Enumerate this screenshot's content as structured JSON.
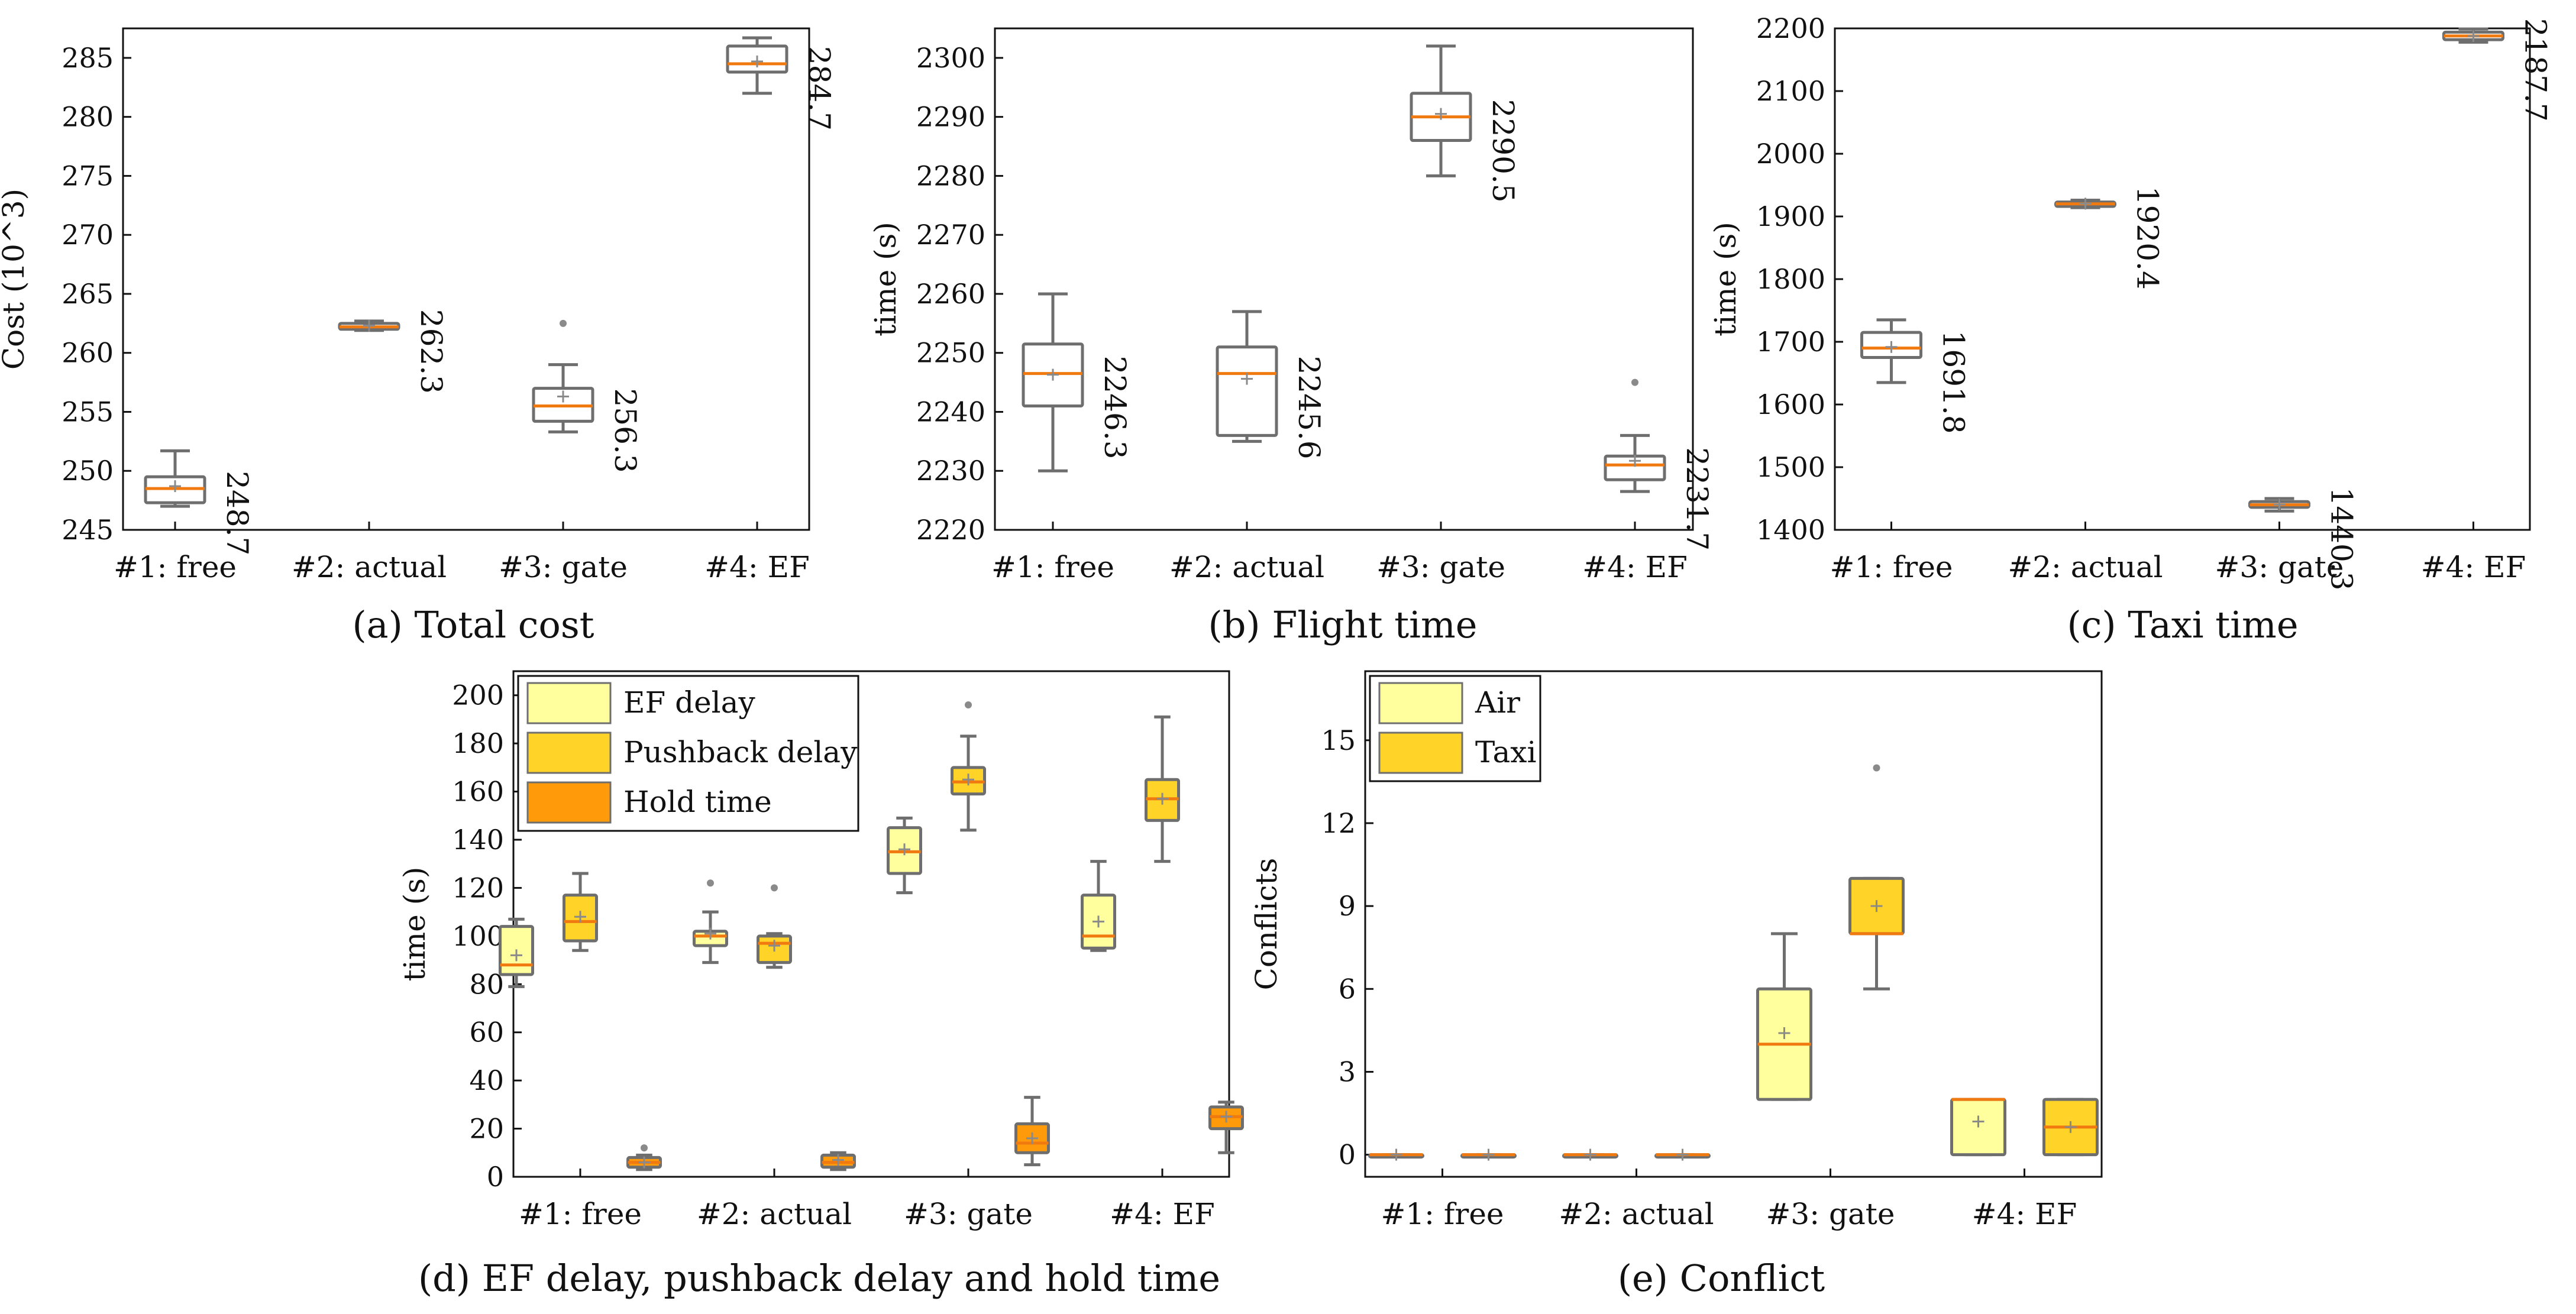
{
  "colors": {
    "box_stroke": "#6e6e6e",
    "median": "#f07a10",
    "mean": "#8a8a8a",
    "fill_white": "#ffffff",
    "fill_light": "#ffff9e",
    "fill_mid": "#ffd327",
    "fill_dark": "#ff9a0a"
  },
  "captions": {
    "a": "(a) Total cost",
    "b": "(b) Flight time",
    "c": "(c) Taxi time",
    "d": "(d) EF delay, pushback delay and hold time",
    "e": "(e) Conflict"
  },
  "chart_data": [
    {
      "id": "a",
      "type": "box",
      "title": "(a) Total cost",
      "ylabel": "Cost (10^3)",
      "ylim": [
        245,
        287.5
      ],
      "yticks": [
        245,
        250,
        255,
        260,
        265,
        270,
        275,
        280,
        285
      ],
      "categories": [
        "#1: free",
        "#2: actual",
        "#3: gate",
        "#4: EF"
      ],
      "series": [
        {
          "name": "Total cost",
          "fill": "fill_white",
          "boxes": [
            {
              "whislo": 247.0,
              "q1": 247.3,
              "med": 248.5,
              "q3": 249.5,
              "whishi": 251.7,
              "mean": 248.7,
              "fliers": []
            },
            {
              "whislo": 261.9,
              "q1": 262.0,
              "med": 262.2,
              "q3": 262.5,
              "whishi": 262.7,
              "mean": 262.3,
              "fliers": []
            },
            {
              "whislo": 253.3,
              "q1": 254.2,
              "med": 255.5,
              "q3": 257.0,
              "whishi": 259.0,
              "mean": 256.3,
              "fliers": [
                262.5
              ]
            },
            {
              "whislo": 282.0,
              "q1": 283.8,
              "med": 284.5,
              "q3": 286.0,
              "whishi": 286.7,
              "mean": 284.7,
              "fliers": []
            }
          ]
        }
      ],
      "data_labels": [
        "248.7",
        "262.3",
        "256.3",
        "284.7"
      ]
    },
    {
      "id": "b",
      "type": "box",
      "title": "(b) Flight time",
      "ylabel": "time (s)",
      "ylim": [
        2220,
        2305
      ],
      "yticks": [
        2220,
        2230,
        2240,
        2250,
        2260,
        2270,
        2280,
        2290,
        2300
      ],
      "categories": [
        "#1: free",
        "#2: actual",
        "#3: gate",
        "#4: EF"
      ],
      "series": [
        {
          "name": "Flight time",
          "fill": "fill_white",
          "boxes": [
            {
              "whislo": 2230.0,
              "q1": 2241.0,
              "med": 2246.5,
              "q3": 2251.5,
              "whishi": 2260.0,
              "mean": 2246.3,
              "fliers": []
            },
            {
              "whislo": 2235.0,
              "q1": 2236.0,
              "med": 2246.5,
              "q3": 2251.0,
              "whishi": 2257.0,
              "mean": 2245.6,
              "fliers": []
            },
            {
              "whislo": 2280.0,
              "q1": 2286.0,
              "med": 2290.0,
              "q3": 2294.0,
              "whishi": 2302.0,
              "mean": 2290.5,
              "fliers": []
            },
            {
              "whislo": 2226.5,
              "q1": 2228.5,
              "med": 2231.0,
              "q3": 2232.5,
              "whishi": 2236.0,
              "mean": 2231.7,
              "fliers": [
                2245.0
              ]
            }
          ]
        }
      ],
      "data_labels": [
        "2246.3",
        "2245.6",
        "2290.5",
        "2231.7"
      ]
    },
    {
      "id": "c",
      "type": "box",
      "title": "(c) Taxi time",
      "ylabel": "time (s)",
      "ylim": [
        1400,
        2200
      ],
      "yticks": [
        1400,
        1500,
        1600,
        1700,
        1800,
        1900,
        2000,
        2100,
        2200
      ],
      "categories": [
        "#1: free",
        "#2: actual",
        "#3: gate",
        "#4: EF"
      ],
      "series": [
        {
          "name": "Taxi time",
          "fill": "fill_white",
          "boxes": [
            {
              "whislo": 1635,
              "q1": 1675,
              "med": 1690,
              "q3": 1715,
              "whishi": 1735,
              "mean": 1691.8,
              "fliers": []
            },
            {
              "whislo": 1914,
              "q1": 1916,
              "med": 1920,
              "q3": 1923,
              "whishi": 1926,
              "mean": 1920.4,
              "fliers": []
            },
            {
              "whislo": 1430,
              "q1": 1436,
              "med": 1440,
              "q3": 1445,
              "whishi": 1450,
              "mean": 1440.3,
              "fliers": []
            },
            {
              "whislo": 2178,
              "q1": 2182,
              "med": 2188,
              "q3": 2194,
              "whishi": 2199,
              "mean": 2187.7,
              "fliers": []
            }
          ]
        }
      ],
      "data_labels": [
        "1691.8",
        "1920.4",
        "1440.3",
        "2187.7"
      ]
    },
    {
      "id": "d",
      "type": "box",
      "title": "(d) EF delay, pushback delay and hold time",
      "ylabel": "time (s)",
      "ylim": [
        0,
        210
      ],
      "yticks": [
        0,
        20,
        40,
        60,
        80,
        100,
        120,
        140,
        160,
        180,
        200
      ],
      "categories": [
        "#1: free",
        "#2: actual",
        "#3: gate",
        "#4: EF"
      ],
      "legend": [
        "EF delay",
        "Pushback delay",
        "Hold time"
      ],
      "series": [
        {
          "name": "EF delay",
          "fill": "fill_light",
          "boxes": [
            {
              "whislo": 79,
              "q1": 84,
              "med": 88,
              "q3": 104,
              "whishi": 107,
              "mean": 92,
              "fliers": []
            },
            {
              "whislo": 89,
              "q1": 96,
              "med": 100,
              "q3": 102,
              "whishi": 110,
              "mean": 101,
              "fliers": [
                122
              ]
            },
            {
              "whislo": 118,
              "q1": 126,
              "med": 135,
              "q3": 145,
              "whishi": 149,
              "mean": 136,
              "fliers": []
            },
            {
              "whislo": 94,
              "q1": 95,
              "med": 100,
              "q3": 117,
              "whishi": 131,
              "mean": 106,
              "fliers": []
            }
          ]
        },
        {
          "name": "Pushback delay",
          "fill": "fill_mid",
          "boxes": [
            {
              "whislo": 94,
              "q1": 98,
              "med": 106,
              "q3": 117,
              "whishi": 126,
              "mean": 108,
              "fliers": []
            },
            {
              "whislo": 87,
              "q1": 89,
              "med": 97,
              "q3": 100,
              "whishi": 101,
              "mean": 96,
              "fliers": [
                120
              ]
            },
            {
              "whislo": 144,
              "q1": 159,
              "med": 164,
              "q3": 170,
              "whishi": 183,
              "mean": 165,
              "fliers": [
                196
              ]
            },
            {
              "whislo": 131,
              "q1": 148,
              "med": 157,
              "q3": 165,
              "whishi": 191,
              "mean": 157,
              "fliers": []
            }
          ]
        },
        {
          "name": "Hold time",
          "fill": "fill_dark",
          "boxes": [
            {
              "whislo": 3,
              "q1": 4,
              "med": 6,
              "q3": 8,
              "whishi": 9,
              "mean": 6,
              "fliers": [
                12
              ]
            },
            {
              "whislo": 3,
              "q1": 4,
              "med": 6,
              "q3": 9,
              "whishi": 10,
              "mean": 7,
              "fliers": []
            },
            {
              "whislo": 5,
              "q1": 10,
              "med": 14,
              "q3": 22,
              "whishi": 33,
              "mean": 16,
              "fliers": []
            },
            {
              "whislo": 10,
              "q1": 20,
              "med": 25,
              "q3": 29,
              "whishi": 31,
              "mean": 25,
              "fliers": []
            }
          ]
        }
      ]
    },
    {
      "id": "e",
      "type": "box",
      "title": "(e) Conflict",
      "ylabel": "Conflicts",
      "ylim": [
        -0.8,
        17.5
      ],
      "yticks": [
        0,
        3,
        6,
        9,
        12,
        15
      ],
      "categories": [
        "#1: free",
        "#2: actual",
        "#3: gate",
        "#4: EF"
      ],
      "legend": [
        "Air",
        "Taxi"
      ],
      "series": [
        {
          "name": "Air",
          "fill": "fill_light",
          "boxes": [
            {
              "whislo": 0,
              "q1": 0,
              "med": 0,
              "q3": 0,
              "whishi": 0,
              "mean": 0,
              "fliers": []
            },
            {
              "whislo": 0,
              "q1": 0,
              "med": 0,
              "q3": 0,
              "whishi": 0,
              "mean": 0,
              "fliers": []
            },
            {
              "whislo": 2,
              "q1": 2,
              "med": 4,
              "q3": 6,
              "whishi": 8,
              "mean": 4.4,
              "fliers": []
            },
            {
              "whislo": 0,
              "q1": 0,
              "med": 2,
              "q3": 2,
              "whishi": 2,
              "mean": 1.2,
              "fliers": []
            }
          ]
        },
        {
          "name": "Taxi",
          "fill": "fill_mid",
          "boxes": [
            {
              "whislo": 0,
              "q1": 0,
              "med": 0,
              "q3": 0,
              "whishi": 0,
              "mean": 0,
              "fliers": []
            },
            {
              "whislo": 0,
              "q1": 0,
              "med": 0,
              "q3": 0,
              "whishi": 0,
              "mean": 0,
              "fliers": []
            },
            {
              "whislo": 6,
              "q1": 8,
              "med": 8,
              "q3": 10,
              "whishi": 10,
              "mean": 9,
              "fliers": [
                14
              ]
            },
            {
              "whislo": 0,
              "q1": 0,
              "med": 1,
              "q3": 2,
              "whishi": 2,
              "mean": 1,
              "fliers": []
            }
          ]
        }
      ]
    }
  ]
}
